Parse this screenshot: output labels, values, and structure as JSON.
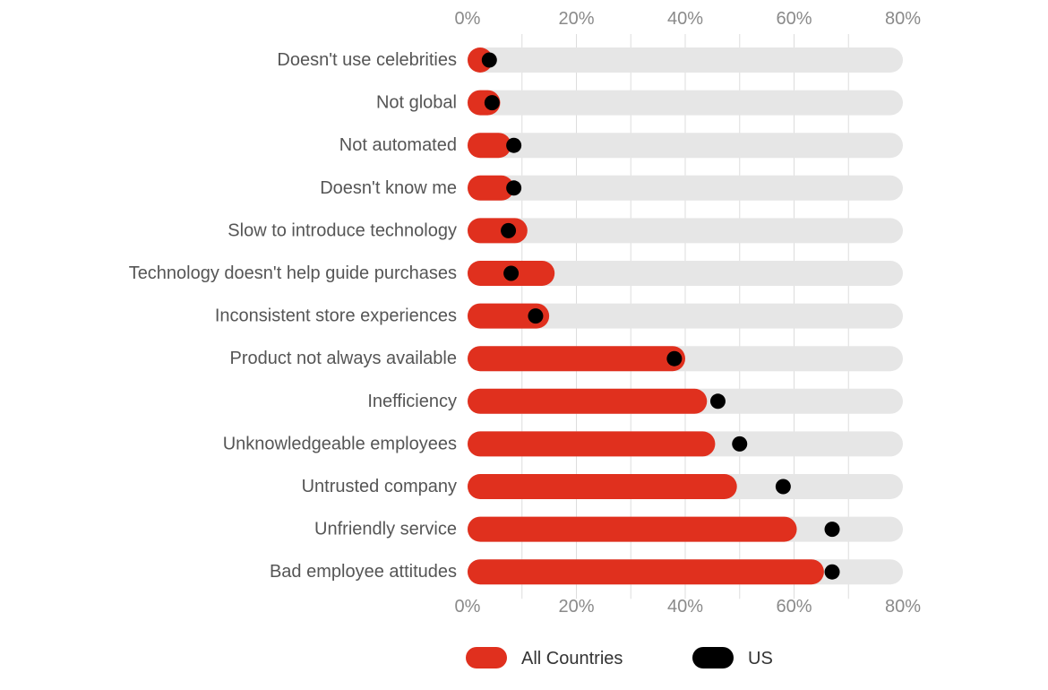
{
  "chart_data": {
    "type": "bar",
    "title": "",
    "xlabel": "",
    "ylabel": "",
    "xlim": [
      0,
      80
    ],
    "x_ticks": [
      "0%",
      "20%",
      "40%",
      "60%",
      "80%"
    ],
    "x_tick_values": [
      0,
      20,
      40,
      60,
      80
    ],
    "grid": true,
    "legend_position": "bottom",
    "categories": [
      "Doesn't use celebrities",
      "Not global",
      "Not automated",
      "Doesn't know me",
      "Slow to introduce technology",
      "Technology doesn't help guide purchases",
      "Inconsistent store experiences",
      "Product not always available",
      "Inefficiency",
      "Unknowledgeable employees",
      "Untrusted company",
      "Unfriendly service",
      "Bad employee attitudes"
    ],
    "series": [
      {
        "name": "All Countries",
        "style": "bar",
        "color": "#e0301e",
        "values": [
          4,
          6,
          8,
          8.5,
          11,
          16,
          15,
          40,
          44,
          45.5,
          49.5,
          60.5,
          65.5
        ]
      },
      {
        "name": "US",
        "style": "dot",
        "color": "#000000",
        "values": [
          4,
          4.5,
          8.5,
          8.5,
          7.5,
          8,
          12.5,
          38,
          46,
          50,
          58,
          67,
          67
        ]
      }
    ],
    "track_color": "#e6e6e6",
    "gridline_color": "#dddddd"
  }
}
